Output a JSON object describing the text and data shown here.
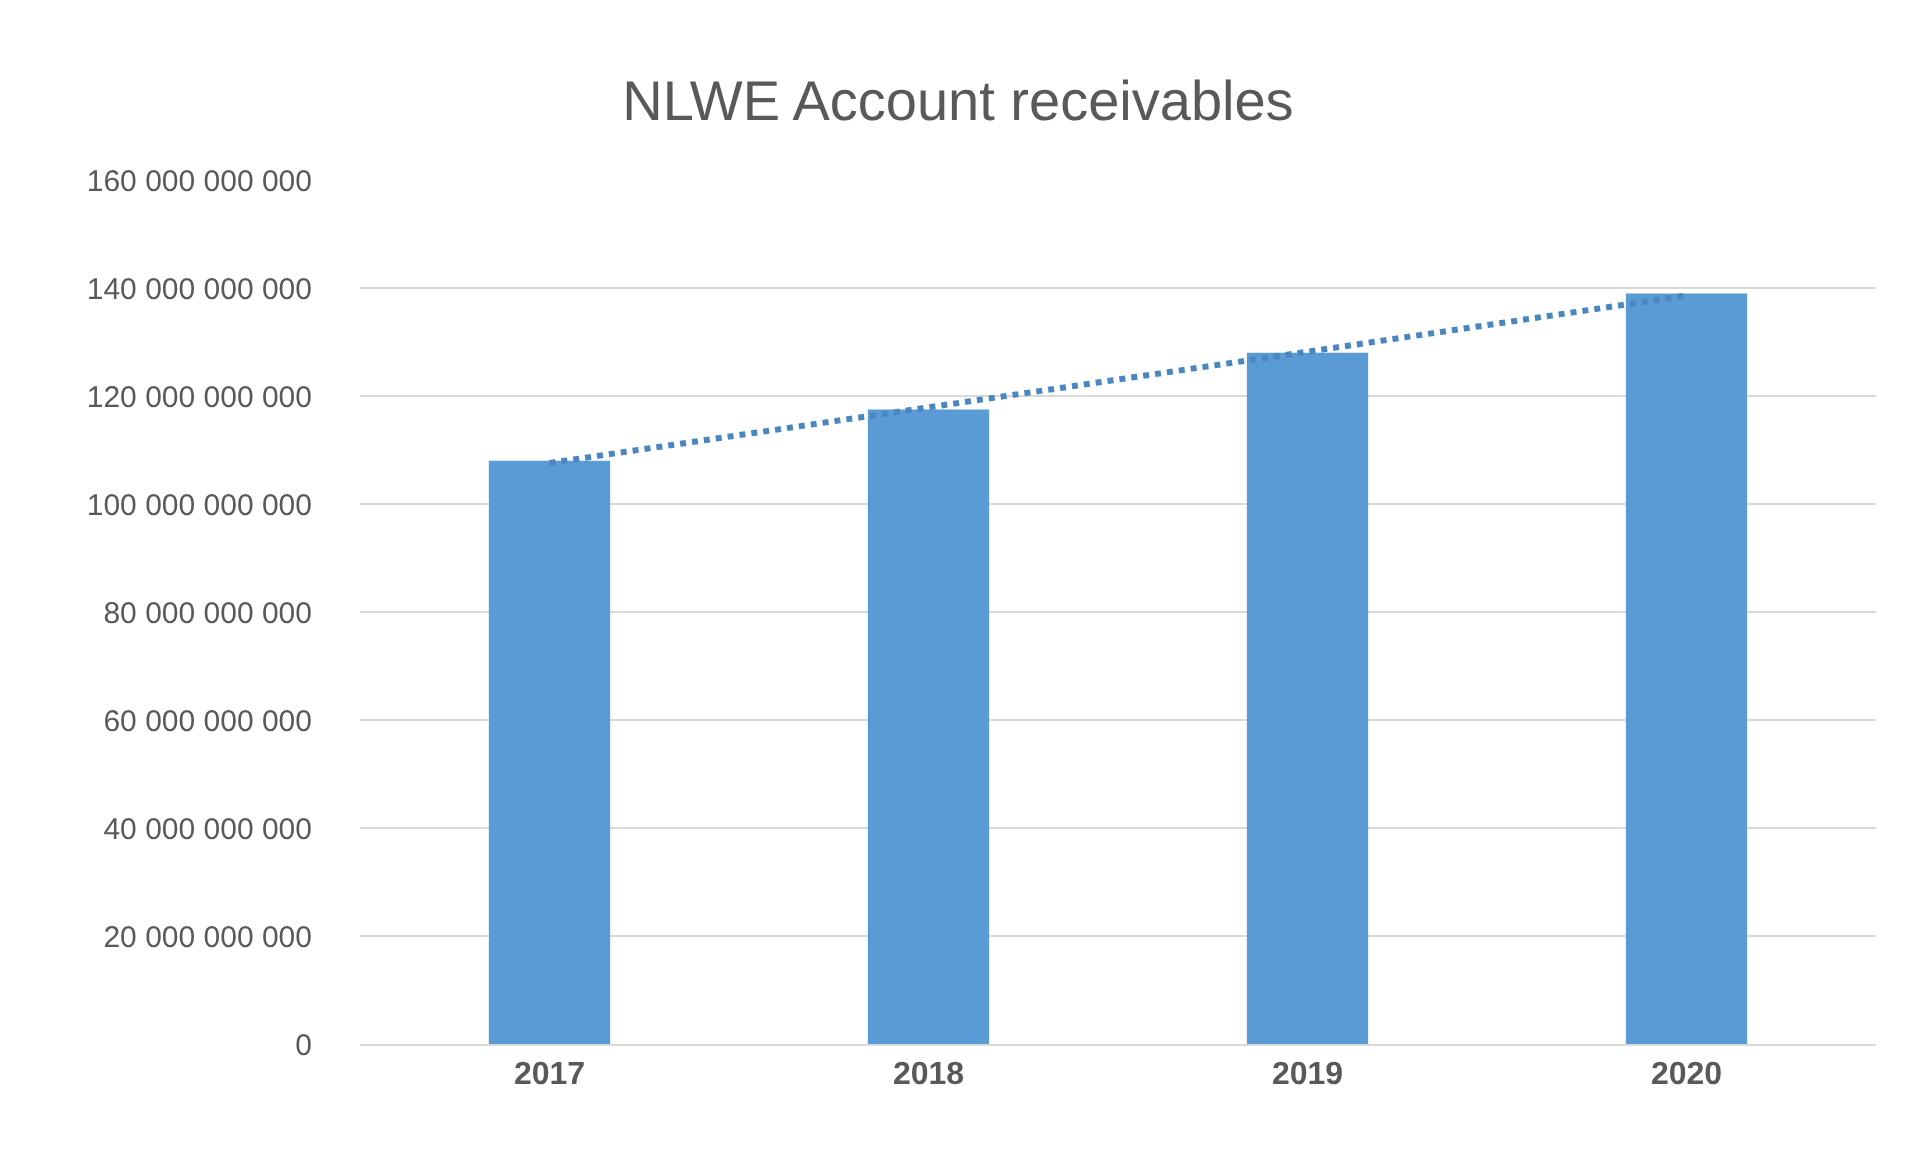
{
  "chart_data": {
    "type": "bar",
    "title": "NLWE Account receivables",
    "categories": [
      "2017",
      "2018",
      "2019",
      "2020"
    ],
    "series": [
      {
        "color": "#5b9bd5",
        "values": [
          108000000000,
          117500000000,
          128000000000,
          139000000000
        ]
      },
      {
        "type": "line",
        "color": "#4a86c0",
        "line_style": "dotted",
        "marker": "none",
        "values": [
          107600000000,
          117900000000,
          128200000000,
          138600000000
        ]
      }
    ],
    "ylim": [
      0,
      160000000000
    ],
    "yticks": [
      {
        "value": 0,
        "label": "0"
      },
      {
        "value": 20000000000,
        "label": "20 000 000 000"
      },
      {
        "value": 40000000000,
        "label": "40 000 000 000"
      },
      {
        "value": 60000000000,
        "label": "60 000 000 000"
      },
      {
        "value": 80000000000,
        "label": "80 000 000 000"
      },
      {
        "value": 100000000000,
        "label": "100 000 000 000"
      },
      {
        "value": 120000000000,
        "label": "120 000 000 000"
      },
      {
        "value": 140000000000,
        "label": "140 000 000 000"
      },
      {
        "value": 160000000000,
        "label": "160 000 000 000"
      }
    ],
    "grid": "y"
  }
}
